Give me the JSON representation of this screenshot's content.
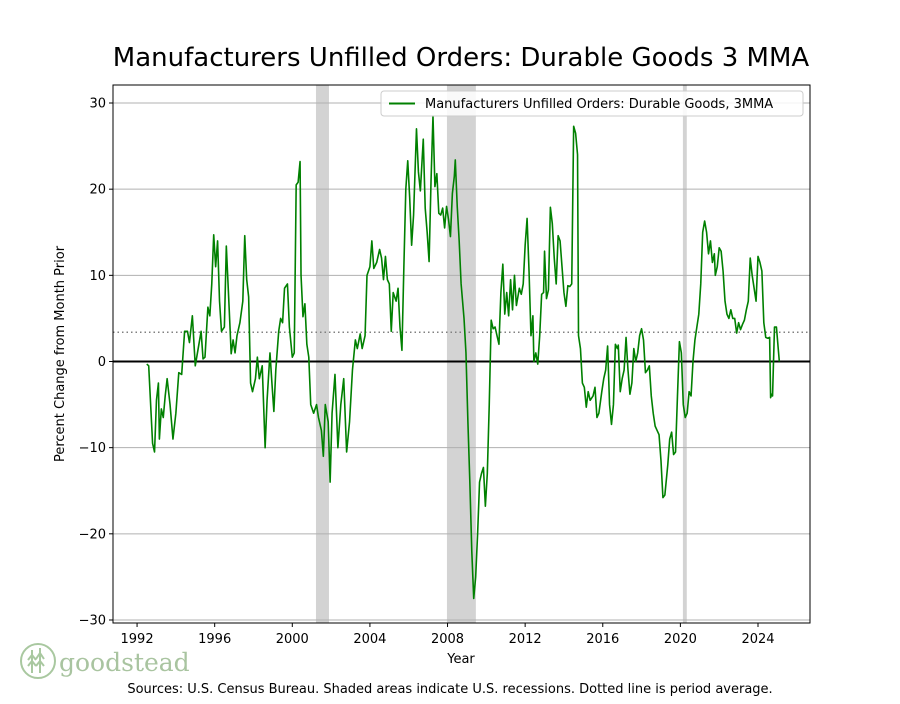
{
  "chart_data": {
    "type": "line",
    "title": "Manufacturers Unfilled Orders: Durable Goods 3 MMA",
    "xlabel": "Year",
    "ylabel": "Percent Change from Month Prior",
    "note": "Sources: U.S. Census Bureau. Shaded areas indicate U.S. recessions. Dotted line is period average.",
    "logo": "goodstead",
    "xlim": [
      1990.76,
      2026.68
    ],
    "ylim": [
      -30.35,
      32.09
    ],
    "xticks": [
      1992,
      1996,
      2000,
      2004,
      2008,
      2012,
      2016,
      2020,
      2024
    ],
    "yticks": [
      {
        "value": -30,
        "label": "−30"
      },
      {
        "value": -20,
        "label": "−20"
      },
      {
        "value": -10,
        "label": "−10"
      },
      0,
      10,
      20,
      30
    ],
    "grid": true,
    "legend": "upper right",
    "hline": 0,
    "average": 3.4,
    "average_color": "#808080",
    "recession_color": "#d3d3d3",
    "recessions": [
      [
        2001.22,
        2001.89
      ],
      [
        2007.97,
        2009.46
      ],
      [
        2020.13,
        2020.33
      ]
    ],
    "x": [
      1992.5,
      1992.6,
      1992.8,
      1992.9,
      1993.0,
      1993.1,
      1993.15,
      1993.25,
      1993.35,
      1993.45,
      1993.55,
      1993.7,
      1993.85,
      1994.0,
      1994.15,
      1994.3,
      1994.45,
      1994.6,
      1994.7,
      1994.85,
      1995.0,
      1995.15,
      1995.3,
      1995.4,
      1995.5,
      1995.65,
      1995.75,
      1995.85,
      1995.95,
      1996.05,
      1996.15,
      1996.25,
      1996.35,
      1996.5,
      1996.6,
      1996.75,
      1996.85,
      1996.95,
      1997.05,
      1997.15,
      1997.3,
      1997.45,
      1997.55,
      1997.65,
      1997.75,
      1997.85,
      1997.95,
      1998.1,
      1998.2,
      1998.3,
      1998.45,
      1998.6,
      1998.7,
      1998.85,
      1998.95,
      1999.05,
      1999.15,
      1999.3,
      1999.4,
      1999.5,
      1999.6,
      1999.75,
      1999.85,
      2000.0,
      2000.1,
      2000.2,
      2000.3,
      2000.4,
      2000.45,
      2000.55,
      2000.65,
      2000.75,
      2000.85,
      2000.95,
      2001.1,
      2001.25,
      2001.35,
      2001.5,
      2001.6,
      2001.7,
      2001.85,
      2001.95,
      2002.05,
      2002.2,
      2002.35,
      2002.5,
      2002.65,
      2002.8,
      2002.95,
      2003.1,
      2003.25,
      2003.35,
      2003.5,
      2003.6,
      2003.75,
      2003.85,
      2004.0,
      2004.1,
      2004.2,
      2004.35,
      2004.5,
      2004.6,
      2004.7,
      2004.8,
      2004.9,
      2005.0,
      2005.1,
      2005.2,
      2005.35,
      2005.45,
      2005.55,
      2005.65,
      2005.75,
      2005.85,
      2005.95,
      2006.05,
      2006.15,
      2006.25,
      2006.4,
      2006.5,
      2006.6,
      2006.75,
      2006.85,
      2006.95,
      2007.05,
      2007.15,
      2007.25,
      2007.35,
      2007.45,
      2007.55,
      2007.65,
      2007.75,
      2007.85,
      2007.95,
      2008.05,
      2008.15,
      2008.25,
      2008.35,
      2008.4,
      2008.5,
      2008.6,
      2008.7,
      2008.85,
      2008.95,
      2009.05,
      2009.15,
      2009.25,
      2009.35,
      2009.45,
      2009.55,
      2009.65,
      2009.75,
      2009.85,
      2009.95,
      2010.05,
      2010.15,
      2010.25,
      2010.35,
      2010.45,
      2010.55,
      2010.65,
      2010.75,
      2010.85,
      2010.95,
      2011.05,
      2011.15,
      2011.25,
      2011.35,
      2011.45,
      2011.55,
      2011.7,
      2011.8,
      2011.9,
      2012.0,
      2012.1,
      2012.2,
      2012.3,
      2012.4,
      2012.45,
      2012.55,
      2012.65,
      2012.75,
      2012.85,
      2012.95,
      2013.0,
      2013.1,
      2013.2,
      2013.3,
      2013.4,
      2013.5,
      2013.6,
      2013.7,
      2013.8,
      2013.9,
      2014.0,
      2014.1,
      2014.2,
      2014.3,
      2014.4,
      2014.5,
      2014.6,
      2014.7,
      2014.75,
      2014.85,
      2014.95,
      2015.05,
      2015.15,
      2015.25,
      2015.35,
      2015.5,
      2015.6,
      2015.7,
      2015.8,
      2015.95,
      2016.05,
      2016.15,
      2016.25,
      2016.35,
      2016.45,
      2016.55,
      2016.65,
      2016.75,
      2016.8,
      2016.9,
      2017.0,
      2017.1,
      2017.2,
      2017.3,
      2017.4,
      2017.5,
      2017.6,
      2017.7,
      2017.8,
      2017.9,
      2018.0,
      2018.1,
      2018.2,
      2018.3,
      2018.4,
      2018.5,
      2018.6,
      2018.7,
      2018.8,
      2018.9,
      2019.0,
      2019.1,
      2019.2,
      2019.35,
      2019.45,
      2019.55,
      2019.65,
      2019.75,
      2019.85,
      2019.95,
      2020.05,
      2020.15,
      2020.25,
      2020.35,
      2020.45,
      2020.55,
      2020.65,
      2020.75,
      2020.85,
      2020.95,
      2021.05,
      2021.15,
      2021.25,
      2021.35,
      2021.45,
      2021.55,
      2021.65,
      2021.75,
      2021.8,
      2021.9,
      2022.0,
      2022.1,
      2022.2,
      2022.3,
      2022.4,
      2022.5,
      2022.6,
      2022.7,
      2022.8,
      2022.9,
      2023.0,
      2023.1,
      2023.2,
      2023.3,
      2023.4,
      2023.5,
      2023.6,
      2023.7,
      2023.8,
      2023.9,
      2024.0,
      2024.1,
      2024.2,
      2024.3,
      2024.4,
      2024.5,
      2024.6,
      2024.65,
      2024.7,
      2024.75,
      2024.85,
      2024.95,
      2025.05,
      2025.1
    ],
    "series": [
      {
        "name": "Manufacturers Unfilled Orders: Durable Goods, 3MMA",
        "color": "#008000",
        "values": [
          -0.3,
          -0.5,
          -9.5,
          -10.5,
          -4.5,
          -2.5,
          -9,
          -5.5,
          -6.5,
          -4,
          -2,
          -5,
          -9,
          -6,
          -1.3,
          -1.5,
          3.5,
          3.5,
          2.2,
          5.3,
          -0.5,
          1.5,
          3.5,
          0.3,
          0.5,
          6.3,
          5.3,
          9,
          14.7,
          11,
          14,
          7,
          3.5,
          4,
          13.4,
          6,
          0.9,
          2.5,
          1,
          3,
          4.5,
          7,
          14.6,
          9.5,
          7.5,
          -2.5,
          -3.5,
          -2,
          0.5,
          -2,
          -0.5,
          -10,
          -4.5,
          1,
          -2.5,
          -5.8,
          -1,
          3.5,
          5,
          4.5,
          8.5,
          9,
          4,
          0.5,
          1,
          20.5,
          20.8,
          23.2,
          10,
          5.2,
          6.7,
          2,
          0.5,
          -5,
          -6,
          -5,
          -6.5,
          -8,
          -11,
          -5,
          -7,
          -14,
          -6,
          -1.5,
          -10,
          -5,
          -2,
          -10.5,
          -7,
          -1,
          2.5,
          1.5,
          3.2,
          1.5,
          3,
          10,
          11,
          14,
          10.8,
          11.5,
          13,
          12,
          9.5,
          12.2,
          9.5,
          9,
          3.5,
          8,
          7,
          8.5,
          4,
          1.3,
          11,
          20,
          23.3,
          19,
          13.5,
          17,
          27,
          22,
          19.8,
          25.8,
          17.8,
          15,
          11.6,
          21,
          28.5,
          20.3,
          21.8,
          17.2,
          17,
          17.8,
          15.5,
          18,
          16.5,
          14.5,
          19.5,
          21.5,
          23.4,
          18,
          14,
          9,
          5,
          1,
          -7,
          -14,
          -22,
          -27.5,
          -25,
          -20,
          -14,
          -13,
          -12.3,
          -16.8,
          -13,
          -5,
          4.8,
          3.8,
          4,
          3,
          2,
          8,
          11.3,
          5.5,
          8,
          5.3,
          9.5,
          6,
          10,
          6.5,
          8.5,
          7.8,
          9,
          13.5,
          16.6,
          10.5,
          3,
          5.3,
          0,
          1,
          -0.3,
          3,
          7.8,
          8,
          12.8,
          7.3,
          8.3,
          17.9,
          16,
          12,
          9,
          14.6,
          14,
          11,
          8,
          6.4,
          8.8,
          8.7,
          9,
          27.3,
          26.5,
          24,
          3,
          1.5,
          -2.5,
          -3,
          -5.3,
          -3.5,
          -4.5,
          -4,
          -3,
          -6.5,
          -6,
          -3.5,
          -2,
          -1,
          1.8,
          -5,
          -7.3,
          -5,
          2,
          1.5,
          1.9,
          -3.5,
          -2,
          -1,
          2.8,
          -1,
          -3.8,
          -2.5,
          1.5,
          0,
          1,
          3,
          3.8,
          2.5,
          -1.3,
          -1,
          -0.5,
          -4,
          -6,
          -7.5,
          -8,
          -8.5,
          -11.5,
          -15.8,
          -15.5,
          -12,
          -9,
          -8.2,
          -10.8,
          -10.5,
          -4,
          2.3,
          1,
          -5,
          -6.5,
          -6,
          -3.5,
          -4,
          0,
          2.5,
          4,
          5.5,
          9,
          15,
          16.3,
          15,
          12.5,
          14,
          11.5,
          12.5,
          10,
          11,
          13.2,
          12.8,
          10.5,
          7,
          5.5,
          5,
          6,
          5,
          5,
          3.3,
          4.5,
          3.7,
          4.3,
          4.8,
          6,
          7,
          12,
          10,
          8.5,
          7,
          12.2,
          11.5,
          10.5,
          4.5,
          2.8,
          2.7,
          2.8,
          -4.2,
          -3.8,
          -4,
          4,
          4,
          1.3,
          0
        ]
      }
    ]
  }
}
